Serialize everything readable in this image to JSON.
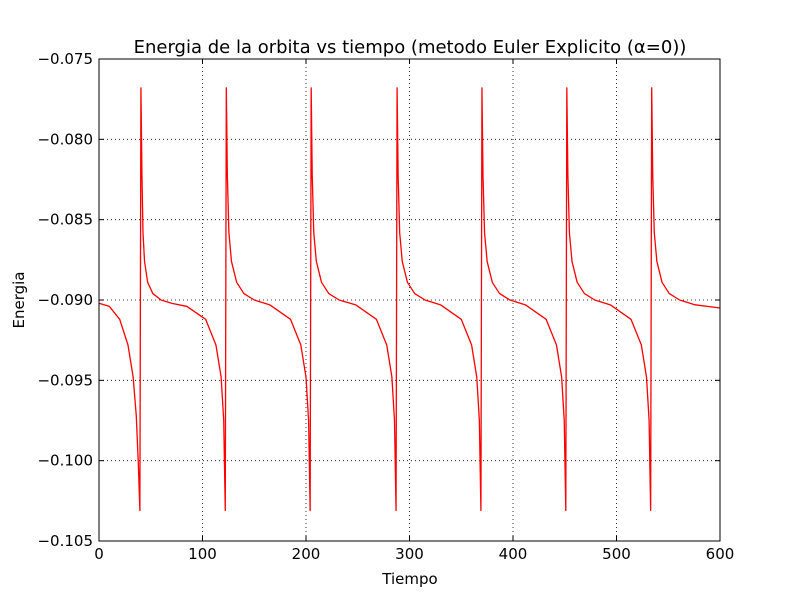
{
  "chart_data": {
    "type": "line",
    "title": "Energia de la orbita vs tiempo (metodo Euler Explicito (α=0))",
    "xlabel": "Tiempo",
    "ylabel": "Energia",
    "xlim": [
      0,
      600
    ],
    "ylim": [
      -0.105,
      -0.075
    ],
    "xticks": [
      0,
      100,
      200,
      300,
      400,
      500,
      600
    ],
    "xtick_labels": [
      "0",
      "100",
      "200",
      "300",
      "400",
      "500",
      "600"
    ],
    "yticks": [
      -0.105,
      -0.1,
      -0.095,
      -0.09,
      -0.085,
      -0.08,
      -0.075
    ],
    "ytick_labels": [
      "−0.105",
      "−0.100",
      "−0.095",
      "−0.090",
      "−0.085",
      "−0.080",
      "−0.075"
    ],
    "grid": true,
    "series": [
      {
        "color": "#ff0000",
        "x": [
          0,
          10,
          20,
          28,
          33,
          36,
          38,
          39.5,
          40.5,
          41.5,
          42.5,
          44,
          47,
          52,
          60,
          70,
          85,
          103,
          113,
          118,
          120.5,
          122,
          123,
          124,
          125.5,
          128,
          133,
          140,
          150,
          165,
          185,
          195,
          200,
          202.5,
          204,
          205,
          206,
          207.5,
          210,
          215,
          222,
          232,
          248,
          268,
          278,
          283,
          285.5,
          287,
          288,
          289,
          290.5,
          293,
          298,
          305,
          315,
          330,
          350,
          360,
          365,
          367.5,
          369,
          370,
          371,
          372.5,
          375,
          380,
          387,
          397,
          412,
          432,
          442,
          447,
          449.5,
          451,
          452,
          453,
          454.5,
          457,
          462,
          469,
          479,
          494,
          514,
          524,
          529,
          531.5,
          533,
          534,
          535,
          536.5,
          539,
          544,
          551,
          561,
          576,
          600
        ],
        "y": [
          -0.0902,
          -0.0904,
          -0.0912,
          -0.0928,
          -0.0948,
          -0.0972,
          -0.1002,
          -0.1031,
          -0.0768,
          -0.0822,
          -0.0858,
          -0.0876,
          -0.0889,
          -0.0896,
          -0.09,
          -0.0902,
          -0.0904,
          -0.0912,
          -0.0928,
          -0.0948,
          -0.0975,
          -0.1031,
          -0.0768,
          -0.0822,
          -0.0858,
          -0.0876,
          -0.0889,
          -0.0896,
          -0.09,
          -0.0903,
          -0.0912,
          -0.0928,
          -0.0948,
          -0.0975,
          -0.1031,
          -0.0768,
          -0.0822,
          -0.0858,
          -0.0876,
          -0.0889,
          -0.0896,
          -0.09,
          -0.0903,
          -0.0912,
          -0.0928,
          -0.0948,
          -0.0975,
          -0.1031,
          -0.0768,
          -0.0822,
          -0.0858,
          -0.0876,
          -0.0889,
          -0.0896,
          -0.09,
          -0.0903,
          -0.0912,
          -0.0928,
          -0.0948,
          -0.0975,
          -0.1031,
          -0.0768,
          -0.0822,
          -0.0858,
          -0.0876,
          -0.0889,
          -0.0896,
          -0.09,
          -0.0903,
          -0.0912,
          -0.0928,
          -0.0948,
          -0.0975,
          -0.1031,
          -0.0768,
          -0.0822,
          -0.0858,
          -0.0876,
          -0.0889,
          -0.0896,
          -0.09,
          -0.0903,
          -0.0912,
          -0.0928,
          -0.0948,
          -0.0975,
          -0.1031,
          -0.0768,
          -0.0822,
          -0.0858,
          -0.0876,
          -0.0889,
          -0.0896,
          -0.09,
          -0.0903,
          -0.0905
        ]
      }
    ]
  }
}
